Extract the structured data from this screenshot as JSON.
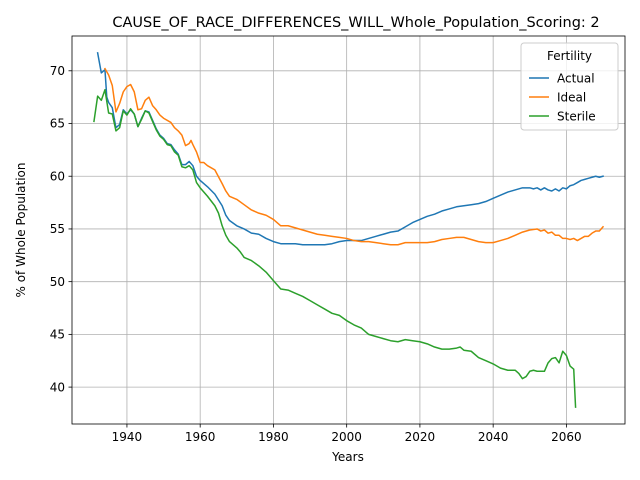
{
  "chart_data": {
    "type": "line",
    "title": "CAUSE_OF_RACE_DIFFERENCES_WILL_Whole_Population_Scoring: 2",
    "xlabel": "Years",
    "ylabel": "% of Whole Population",
    "xlim": [
      1925,
      2076
    ],
    "ylim": [
      36.5,
      73.3
    ],
    "xticks": [
      1940,
      1960,
      1980,
      2000,
      2020,
      2040,
      2060
    ],
    "yticks": [
      40,
      45,
      50,
      55,
      60,
      65,
      70
    ],
    "grid": true,
    "legend": {
      "title": "Fertility",
      "placement": "top-right"
    },
    "series": [
      {
        "name": "Actual",
        "color": "#1f77b4",
        "points": [
          [
            1932,
            71.7
          ],
          [
            1933,
            69.8
          ],
          [
            1934,
            70.1
          ],
          [
            1934.5,
            67.5
          ],
          [
            1935,
            67.0
          ],
          [
            1936,
            66.5
          ],
          [
            1937,
            64.6
          ],
          [
            1938,
            64.9
          ],
          [
            1939,
            66.3
          ],
          [
            1940,
            65.9
          ],
          [
            1941,
            66.3
          ],
          [
            1942,
            65.9
          ],
          [
            1943,
            64.7
          ],
          [
            1944,
            65.5
          ],
          [
            1945,
            66.2
          ],
          [
            1946,
            66.1
          ],
          [
            1947,
            65.3
          ],
          [
            1948,
            64.5
          ],
          [
            1949,
            63.9
          ],
          [
            1950,
            63.6
          ],
          [
            1951,
            63.1
          ],
          [
            1952,
            63.0
          ],
          [
            1953,
            62.5
          ],
          [
            1954,
            62.1
          ],
          [
            1955,
            61.1
          ],
          [
            1956,
            61.1
          ],
          [
            1957,
            61.4
          ],
          [
            1958,
            61.0
          ],
          [
            1959,
            60.0
          ],
          [
            1960,
            59.6
          ],
          [
            1962,
            59.0
          ],
          [
            1964,
            58.3
          ],
          [
            1966,
            57.2
          ],
          [
            1967,
            56.3
          ],
          [
            1968,
            55.8
          ],
          [
            1970,
            55.3
          ],
          [
            1972,
            55.0
          ],
          [
            1974,
            54.6
          ],
          [
            1976,
            54.5
          ],
          [
            1978,
            54.1
          ],
          [
            1980,
            53.8
          ],
          [
            1982,
            53.6
          ],
          [
            1984,
            53.6
          ],
          [
            1986,
            53.6
          ],
          [
            1988,
            53.5
          ],
          [
            1990,
            53.5
          ],
          [
            1992,
            53.5
          ],
          [
            1994,
            53.5
          ],
          [
            1996,
            53.6
          ],
          [
            1998,
            53.8
          ],
          [
            2000,
            53.9
          ],
          [
            2002,
            53.9
          ],
          [
            2004,
            53.9
          ],
          [
            2006,
            54.1
          ],
          [
            2008,
            54.3
          ],
          [
            2010,
            54.5
          ],
          [
            2012,
            54.7
          ],
          [
            2014,
            54.8
          ],
          [
            2016,
            55.2
          ],
          [
            2018,
            55.6
          ],
          [
            2020,
            55.9
          ],
          [
            2022,
            56.2
          ],
          [
            2024,
            56.4
          ],
          [
            2026,
            56.7
          ],
          [
            2028,
            56.9
          ],
          [
            2030,
            57.1
          ],
          [
            2032,
            57.2
          ],
          [
            2034,
            57.3
          ],
          [
            2036,
            57.4
          ],
          [
            2038,
            57.6
          ],
          [
            2040,
            57.9
          ],
          [
            2042,
            58.2
          ],
          [
            2044,
            58.5
          ],
          [
            2046,
            58.7
          ],
          [
            2048,
            58.9
          ],
          [
            2050,
            58.9
          ],
          [
            2051,
            58.8
          ],
          [
            2052,
            58.9
          ],
          [
            2053,
            58.7
          ],
          [
            2054,
            58.9
          ],
          [
            2055,
            58.7
          ],
          [
            2056,
            58.6
          ],
          [
            2057,
            58.8
          ],
          [
            2058,
            58.6
          ],
          [
            2059,
            58.9
          ],
          [
            2060,
            58.8
          ],
          [
            2061,
            59.1
          ],
          [
            2062,
            59.2
          ],
          [
            2063,
            59.4
          ],
          [
            2064,
            59.6
          ],
          [
            2065,
            59.7
          ],
          [
            2066,
            59.8
          ],
          [
            2067,
            59.9
          ],
          [
            2068,
            60.0
          ],
          [
            2069,
            59.9
          ],
          [
            2070,
            60.0
          ]
        ]
      },
      {
        "name": "Ideal",
        "color": "#ff7f0e",
        "points": [
          [
            1934,
            70.2
          ],
          [
            1935,
            69.6
          ],
          [
            1936,
            68.6
          ],
          [
            1937,
            66.1
          ],
          [
            1938,
            66.9
          ],
          [
            1939,
            68.0
          ],
          [
            1940,
            68.5
          ],
          [
            1941,
            68.7
          ],
          [
            1942,
            68.0
          ],
          [
            1943,
            66.3
          ],
          [
            1944,
            66.4
          ],
          [
            1945,
            67.2
          ],
          [
            1946,
            67.5
          ],
          [
            1947,
            66.7
          ],
          [
            1948,
            66.3
          ],
          [
            1949,
            65.8
          ],
          [
            1950,
            65.5
          ],
          [
            1952,
            65.1
          ],
          [
            1953,
            64.6
          ],
          [
            1954,
            64.3
          ],
          [
            1955,
            63.9
          ],
          [
            1956,
            62.9
          ],
          [
            1957,
            63.1
          ],
          [
            1957.5,
            63.4
          ],
          [
            1958,
            63.0
          ],
          [
            1959,
            62.3
          ],
          [
            1960,
            61.3
          ],
          [
            1961,
            61.3
          ],
          [
            1962,
            61.0
          ],
          [
            1964,
            60.6
          ],
          [
            1966,
            59.3
          ],
          [
            1967,
            58.6
          ],
          [
            1968,
            58.1
          ],
          [
            1970,
            57.8
          ],
          [
            1972,
            57.3
          ],
          [
            1974,
            56.8
          ],
          [
            1976,
            56.5
          ],
          [
            1978,
            56.3
          ],
          [
            1980,
            55.9
          ],
          [
            1982,
            55.3
          ],
          [
            1984,
            55.3
          ],
          [
            1986,
            55.1
          ],
          [
            1988,
            54.9
          ],
          [
            1990,
            54.7
          ],
          [
            1992,
            54.5
          ],
          [
            1994,
            54.4
          ],
          [
            1996,
            54.3
          ],
          [
            1998,
            54.2
          ],
          [
            2000,
            54.1
          ],
          [
            2002,
            53.9
          ],
          [
            2004,
            53.8
          ],
          [
            2006,
            53.8
          ],
          [
            2008,
            53.7
          ],
          [
            2010,
            53.6
          ],
          [
            2012,
            53.5
          ],
          [
            2014,
            53.5
          ],
          [
            2016,
            53.7
          ],
          [
            2018,
            53.7
          ],
          [
            2020,
            53.7
          ],
          [
            2022,
            53.7
          ],
          [
            2024,
            53.8
          ],
          [
            2026,
            54.0
          ],
          [
            2028,
            54.1
          ],
          [
            2030,
            54.2
          ],
          [
            2032,
            54.2
          ],
          [
            2034,
            54.0
          ],
          [
            2036,
            53.8
          ],
          [
            2038,
            53.7
          ],
          [
            2040,
            53.7
          ],
          [
            2042,
            53.9
          ],
          [
            2044,
            54.1
          ],
          [
            2046,
            54.4
          ],
          [
            2048,
            54.7
          ],
          [
            2050,
            54.9
          ],
          [
            2052,
            55.0
          ],
          [
            2053,
            54.8
          ],
          [
            2054,
            54.9
          ],
          [
            2055,
            54.6
          ],
          [
            2056,
            54.7
          ],
          [
            2057,
            54.4
          ],
          [
            2058,
            54.4
          ],
          [
            2059,
            54.1
          ],
          [
            2060,
            54.1
          ],
          [
            2061,
            54.0
          ],
          [
            2062,
            54.1
          ],
          [
            2063,
            53.9
          ],
          [
            2064,
            54.1
          ],
          [
            2065,
            54.3
          ],
          [
            2066,
            54.3
          ],
          [
            2067,
            54.6
          ],
          [
            2068,
            54.8
          ],
          [
            2069,
            54.8
          ],
          [
            2070,
            55.2
          ]
        ]
      },
      {
        "name": "Sterile",
        "color": "#2ca02c",
        "points": [
          [
            1931,
            65.2
          ],
          [
            1932,
            67.6
          ],
          [
            1933,
            67.2
          ],
          [
            1934,
            68.2
          ],
          [
            1935,
            66.0
          ],
          [
            1936,
            65.9
          ],
          [
            1937,
            64.3
          ],
          [
            1938,
            64.6
          ],
          [
            1939,
            66.2
          ],
          [
            1940,
            65.8
          ],
          [
            1941,
            66.4
          ],
          [
            1942,
            65.9
          ],
          [
            1943,
            64.7
          ],
          [
            1944,
            65.4
          ],
          [
            1945,
            66.2
          ],
          [
            1946,
            66.0
          ],
          [
            1947,
            65.2
          ],
          [
            1948,
            64.4
          ],
          [
            1949,
            63.8
          ],
          [
            1950,
            63.5
          ],
          [
            1951,
            63.0
          ],
          [
            1952,
            62.9
          ],
          [
            1953,
            62.3
          ],
          [
            1954,
            62.0
          ],
          [
            1955,
            60.9
          ],
          [
            1956,
            60.8
          ],
          [
            1957,
            61.0
          ],
          [
            1958,
            60.6
          ],
          [
            1959,
            59.4
          ],
          [
            1960,
            58.9
          ],
          [
            1962,
            58.1
          ],
          [
            1964,
            57.2
          ],
          [
            1965,
            56.5
          ],
          [
            1966,
            55.3
          ],
          [
            1967,
            54.4
          ],
          [
            1968,
            53.8
          ],
          [
            1970,
            53.2
          ],
          [
            1971,
            52.8
          ],
          [
            1972,
            52.3
          ],
          [
            1974,
            52.0
          ],
          [
            1976,
            51.5
          ],
          [
            1978,
            50.9
          ],
          [
            1980,
            50.1
          ],
          [
            1982,
            49.3
          ],
          [
            1984,
            49.2
          ],
          [
            1986,
            48.9
          ],
          [
            1988,
            48.6
          ],
          [
            1990,
            48.2
          ],
          [
            1992,
            47.8
          ],
          [
            1994,
            47.4
          ],
          [
            1996,
            47.0
          ],
          [
            1998,
            46.8
          ],
          [
            2000,
            46.3
          ],
          [
            2002,
            45.9
          ],
          [
            2004,
            45.6
          ],
          [
            2006,
            45.0
          ],
          [
            2008,
            44.8
          ],
          [
            2010,
            44.6
          ],
          [
            2012,
            44.4
          ],
          [
            2014,
            44.3
          ],
          [
            2016,
            44.5
          ],
          [
            2018,
            44.4
          ],
          [
            2020,
            44.3
          ],
          [
            2022,
            44.1
          ],
          [
            2024,
            43.8
          ],
          [
            2026,
            43.6
          ],
          [
            2028,
            43.6
          ],
          [
            2030,
            43.7
          ],
          [
            2031,
            43.8
          ],
          [
            2032,
            43.5
          ],
          [
            2034,
            43.4
          ],
          [
            2036,
            42.8
          ],
          [
            2038,
            42.5
          ],
          [
            2040,
            42.2
          ],
          [
            2042,
            41.8
          ],
          [
            2044,
            41.6
          ],
          [
            2046,
            41.6
          ],
          [
            2047,
            41.3
          ],
          [
            2048,
            40.8
          ],
          [
            2049,
            41.0
          ],
          [
            2050,
            41.5
          ],
          [
            2051,
            41.6
          ],
          [
            2052,
            41.5
          ],
          [
            2054,
            41.5
          ],
          [
            2055,
            42.3
          ],
          [
            2056,
            42.7
          ],
          [
            2057,
            42.8
          ],
          [
            2058,
            42.3
          ],
          [
            2059,
            43.4
          ],
          [
            2060,
            43.0
          ],
          [
            2061,
            42.0
          ],
          [
            2062,
            41.7
          ],
          [
            2062.5,
            38.1
          ]
        ]
      }
    ]
  }
}
